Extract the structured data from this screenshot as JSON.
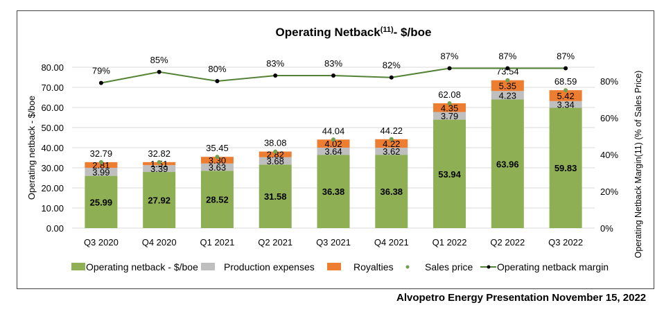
{
  "footer": "Alvopetro Energy Presentation November 15, 2022",
  "chart_data": {
    "type": "bar",
    "subtype": "stacked-bar-with-line",
    "title": "Operating Netback",
    "title_superscript": "(11)",
    "title_suffix": "- $/boe",
    "ylabel": "Operating netback - $/boe",
    "y2label": "Operating Netback Margin(11) (% of Sales Price)",
    "xlabel": "",
    "ylim": [
      0,
      80
    ],
    "yticks": [
      "0.00",
      "10.00",
      "20.00",
      "30.00",
      "40.00",
      "50.00",
      "60.00",
      "70.00",
      "80.00"
    ],
    "y2lim": [
      0,
      1.0
    ],
    "y2ticks": [
      "0%",
      "20%",
      "40%",
      "60%",
      "80%"
    ],
    "grid": true,
    "legend_position": "bottom",
    "categories": [
      "Q3 2020",
      "Q4 2020",
      "Q1 2021",
      "Q2 2021",
      "Q3 2021",
      "Q4 2021",
      "Q1 2022",
      "Q2 2022",
      "Q3 2022"
    ],
    "series": [
      {
        "name": "Operating netback - $/boe",
        "kind": "bar",
        "color": "#8faf55",
        "values": [
          25.99,
          27.92,
          28.52,
          31.58,
          36.38,
          36.38,
          53.94,
          63.96,
          59.83
        ],
        "labels": [
          "25.99",
          "27.92",
          "28.52",
          "31.58",
          "36.38",
          "36.38",
          "53.94",
          "63.96",
          "59.83"
        ]
      },
      {
        "name": "Production expenses",
        "kind": "bar",
        "color": "#bfbfbf",
        "values": [
          3.99,
          3.39,
          3.63,
          3.68,
          3.64,
          3.62,
          3.79,
          4.23,
          3.34
        ],
        "labels": [
          "3.99",
          "3.39",
          "3.63",
          "3.68",
          "3.64",
          "3.62",
          "3.79",
          "4.23",
          "3.34"
        ]
      },
      {
        "name": "Royalties",
        "kind": "bar",
        "color": "#ed7d31",
        "values": [
          2.81,
          1.51,
          3.3,
          2.82,
          4.02,
          4.22,
          4.35,
          5.35,
          5.42
        ],
        "labels": [
          "2.81",
          "1.51",
          "3.30",
          "2.82",
          "4.02",
          "4.22",
          "4.35",
          "5.35",
          "5.42"
        ]
      },
      {
        "name": "Sales price",
        "kind": "scatter",
        "color": "#70a050",
        "values": [
          32.79,
          32.82,
          35.45,
          38.08,
          44.04,
          44.22,
          62.08,
          73.54,
          68.59
        ],
        "labels": [
          "32.79",
          "32.82",
          "35.45",
          "38.08",
          "44.04",
          "44.22",
          "62.08",
          "73.54",
          "68.59"
        ]
      },
      {
        "name": "Operating netback margin",
        "kind": "line",
        "axis": "secondary",
        "color": "#548235",
        "marker_color": "#000000",
        "values": [
          0.79,
          0.85,
          0.8,
          0.83,
          0.83,
          0.82,
          0.87,
          0.87,
          0.87
        ],
        "labels": [
          "79%",
          "85%",
          "80%",
          "83%",
          "83%",
          "82%",
          "87%",
          "87%",
          "87%"
        ]
      }
    ]
  }
}
